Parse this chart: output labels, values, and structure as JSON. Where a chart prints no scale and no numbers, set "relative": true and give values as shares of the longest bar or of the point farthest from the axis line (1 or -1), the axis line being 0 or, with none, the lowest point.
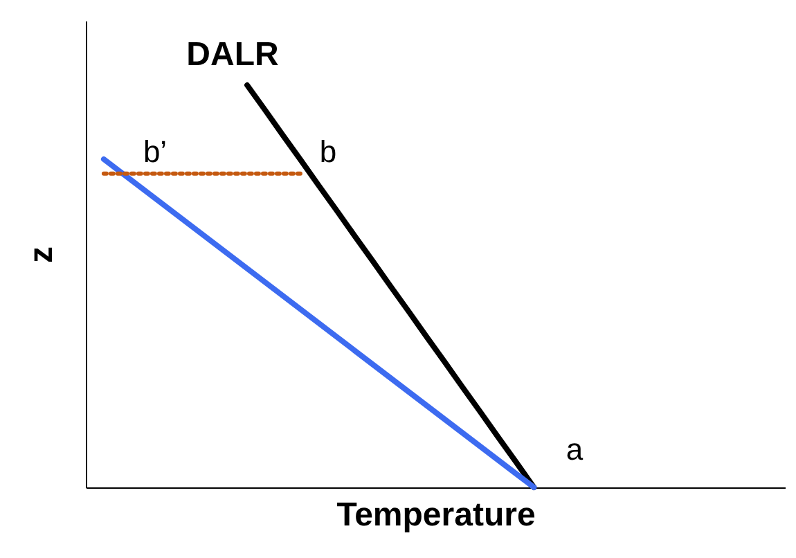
{
  "chart_data": {
    "type": "line",
    "relative": true,
    "xlabel": "Temperature",
    "ylabel": "z",
    "tick_labels": false,
    "categories": [
      null,
      null,
      null,
      null,
      null,
      null,
      null,
      null,
      null,
      null,
      null,
      null,
      null,
      null,
      null,
      null,
      null,
      null,
      null,
      null,
      null,
      null,
      null,
      null,
      null,
      null,
      null,
      null,
      null,
      null,
      null,
      null,
      null,
      null,
      null,
      null,
      null,
      null,
      null,
      null
    ],
    "series": [
      {
        "color": "#000000",
        "values": [
          null,
          null,
          null,
          null,
          null,
          null,
          null,
          null,
          null,
          1,
          0.938,
          0.875,
          0.813,
          0.75,
          0.688,
          0.625,
          0.563,
          0.5,
          0.438,
          0.375,
          0.313,
          0.25,
          0.188,
          0.125,
          0.063,
          0,
          null,
          null,
          null,
          null,
          null,
          null,
          null,
          null,
          null,
          null,
          null,
          null,
          null,
          null
        ]
      },
      {
        "color": "#3d6bf0",
        "values": [
          null,
          0.816,
          0.782,
          0.748,
          0.714,
          0.68,
          0.646,
          0.612,
          0.578,
          0.544,
          0.51,
          0.476,
          0.442,
          0.408,
          0.374,
          0.34,
          0.306,
          0.272,
          0.238,
          0.204,
          0.17,
          0.136,
          0.102,
          0.068,
          0.034,
          0,
          null,
          null,
          null,
          null,
          null,
          null,
          null,
          null,
          null,
          null,
          null,
          null,
          null,
          null
        ]
      },
      {
        "color": "#c55a11",
        "line_style": "dotted",
        "values": [
          null,
          0.78,
          0.78,
          0.78,
          0.78,
          0.78,
          0.78,
          0.78,
          0.78,
          0.78,
          0.78,
          0.78,
          0.78,
          null,
          null,
          null,
          null,
          null,
          null,
          null,
          null,
          null,
          null,
          null,
          null,
          null,
          null,
          null,
          null,
          null,
          null,
          null,
          null,
          null,
          null,
          null,
          null,
          null,
          null,
          null
        ]
      }
    ],
    "annotations": [
      "DALR",
      "b’",
      "b",
      "a"
    ]
  }
}
